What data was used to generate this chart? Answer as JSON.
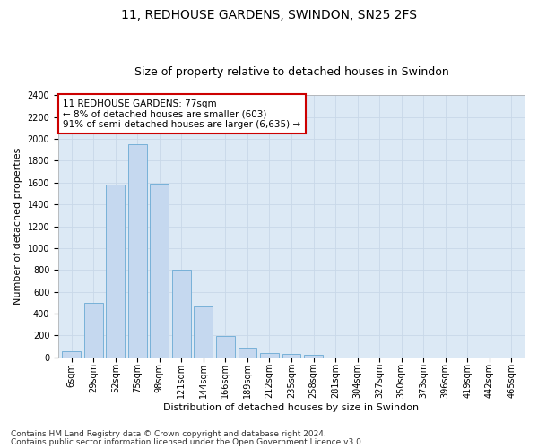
{
  "title": "11, REDHOUSE GARDENS, SWINDON, SN25 2FS",
  "subtitle": "Size of property relative to detached houses in Swindon",
  "xlabel": "Distribution of detached houses by size in Swindon",
  "ylabel": "Number of detached properties",
  "footer_line1": "Contains HM Land Registry data © Crown copyright and database right 2024.",
  "footer_line2": "Contains public sector information licensed under the Open Government Licence v3.0.",
  "annotation_line1": "11 REDHOUSE GARDENS: 77sqm",
  "annotation_line2": "← 8% of detached houses are smaller (603)",
  "annotation_line3": "91% of semi-detached houses are larger (6,635) →",
  "categories": [
    "6sqm",
    "29sqm",
    "52sqm",
    "75sqm",
    "98sqm",
    "121sqm",
    "144sqm",
    "166sqm",
    "189sqm",
    "212sqm",
    "235sqm",
    "258sqm",
    "281sqm",
    "304sqm",
    "327sqm",
    "350sqm",
    "373sqm",
    "396sqm",
    "419sqm",
    "442sqm",
    "465sqm"
  ],
  "values": [
    55,
    500,
    1580,
    1950,
    1590,
    800,
    470,
    195,
    90,
    40,
    30,
    20,
    0,
    0,
    0,
    0,
    0,
    0,
    0,
    0,
    0
  ],
  "bar_color": "#c5d8ef",
  "bar_edge_color": "#6aaad4",
  "annotation_box_color": "#ffffff",
  "annotation_box_edge_color": "#cc0000",
  "ylim": [
    0,
    2400
  ],
  "yticks": [
    0,
    200,
    400,
    600,
    800,
    1000,
    1200,
    1400,
    1600,
    1800,
    2000,
    2200,
    2400
  ],
  "grid_color": "#c8d8e8",
  "bg_color": "#dce9f5",
  "title_fontsize": 10,
  "subtitle_fontsize": 9,
  "axis_label_fontsize": 8,
  "tick_fontsize": 7,
  "annotation_fontsize": 7.5,
  "footer_fontsize": 6.5
}
